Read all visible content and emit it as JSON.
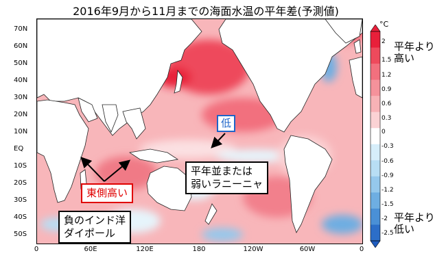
{
  "title": "2016年9月から11月までの海面水温の平年差(予測値)",
  "lat_labels": [
    "70N",
    "60N",
    "50N",
    "40N",
    "30N",
    "20N",
    "10N",
    "EQ",
    "10S",
    "20S",
    "30S",
    "40S",
    "50S"
  ],
  "lon_labels": [
    "0",
    "60E",
    "120E",
    "180",
    "120W",
    "60W",
    "0"
  ],
  "colorbar": {
    "unit": "°C",
    "ticks": [
      "2",
      "1.5",
      "1.2",
      "0.9",
      "0.6",
      "0.3",
      "0",
      "-0.3",
      "-0.6",
      "-0.9",
      "-1.2",
      "-1.5",
      "-2",
      "-2.5"
    ],
    "colors": [
      "#e8203a",
      "#ee4a5c",
      "#f2707e",
      "#f5929b",
      "#f8b2b6",
      "#fbd2d4",
      "#ffffff",
      "#d6eefa",
      "#b8def4",
      "#95c8ec",
      "#6eaee2",
      "#4a90d6",
      "#2c6ec8"
    ],
    "high_label": [
      "平年より",
      "高い"
    ],
    "low_label": [
      "平年より",
      "低い"
    ]
  },
  "annotations": {
    "low": "低",
    "east_high": "東側高い",
    "la_nina": [
      "平年並または",
      "弱いラニーニャ"
    ],
    "iod": [
      "負のインド洋",
      "ダイポール"
    ]
  }
}
